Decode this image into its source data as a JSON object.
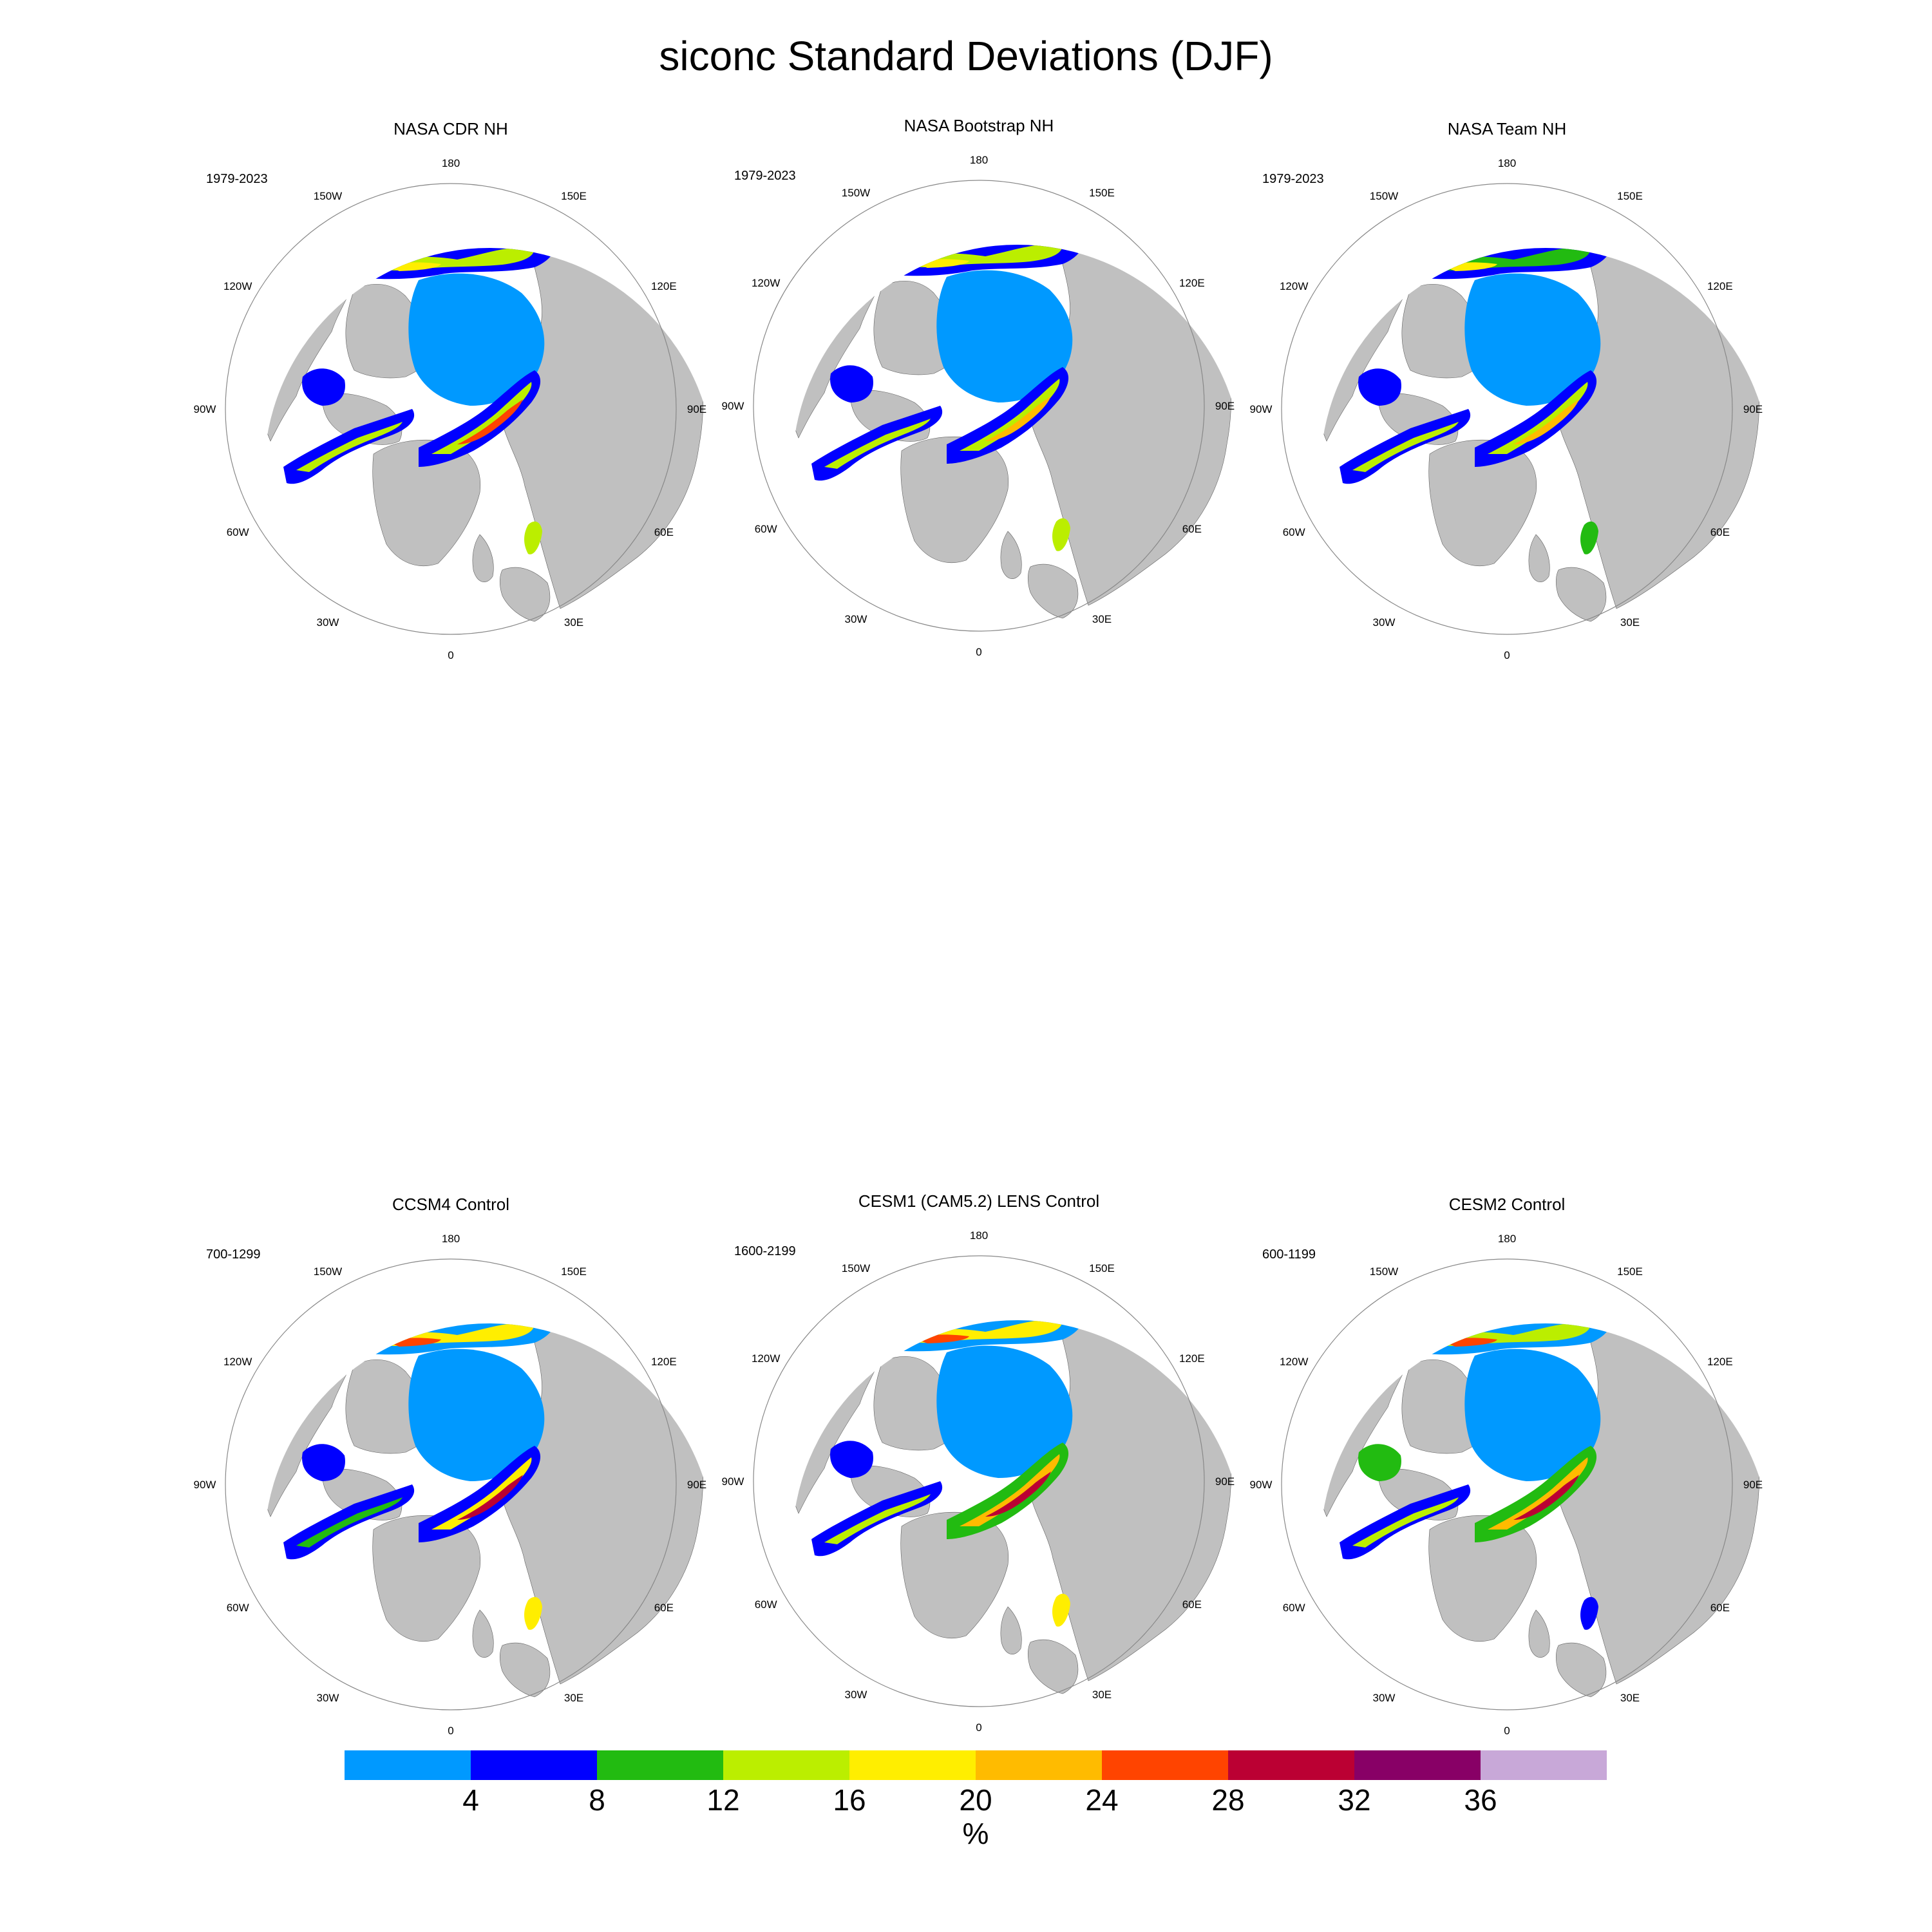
{
  "title": "siconc Standard Deviations (DJF)",
  "panels": [
    {
      "title": "NASA CDR NH",
      "years": "1979-2023"
    },
    {
      "title": "NASA Bootstrap NH",
      "years": "1979-2023"
    },
    {
      "title": "NASA Team NH",
      "years": "1979-2023"
    },
    {
      "title": "CCSM4 Control",
      "years": "700-1299"
    },
    {
      "title": "CESM1 (CAM5.2) LENS Control",
      "years": "1600-2199"
    },
    {
      "title": "CESM2 Control",
      "years": "600-1199"
    }
  ],
  "longitude_labels": [
    "180",
    "150E",
    "120E",
    "90E",
    "60E",
    "30E",
    "0",
    "30W",
    "60W",
    "90W",
    "120W",
    "150W"
  ],
  "colorbar": {
    "colors": [
      "#0099ff",
      "#0000ff",
      "#22bb11",
      "#bbee00",
      "#ffee00",
      "#ffbb00",
      "#ff4400",
      "#bb0033",
      "#880066",
      "#c8a8d8"
    ],
    "tick_labels": [
      "4",
      "8",
      "12",
      "16",
      "20",
      "24",
      "28",
      "32",
      "36"
    ],
    "unit": "%"
  },
  "map_colors": {
    "land": "#c0c0c0",
    "ocean": "#ffffff",
    "outline": "#888888"
  }
}
